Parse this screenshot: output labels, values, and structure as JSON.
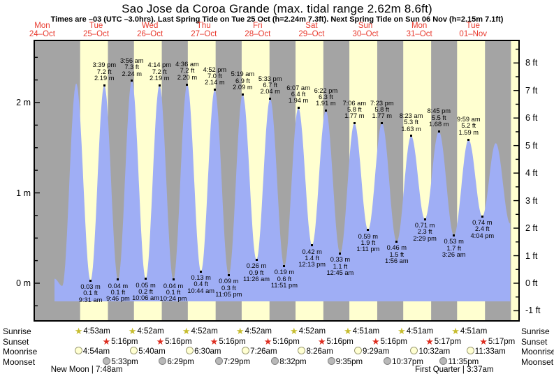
{
  "header": {
    "title": "Sao Jose da Coroa Grande (max. tidal range 2.62m 8.6ft)",
    "subtitle": "Times are –03 (UTC –3.0hrs). Last Spring Tide on Tue 25 Oct (h=2.24m 7.3ft). Next Spring Tide on Sun 06 Nov (h=2.15m 7.1ft)"
  },
  "days": [
    {
      "name": "Mon",
      "date": "24–Oct"
    },
    {
      "name": "Tue",
      "date": "25–Oct"
    },
    {
      "name": "Wed",
      "date": "26–Oct"
    },
    {
      "name": "Thu",
      "date": "27–Oct"
    },
    {
      "name": "Fri",
      "date": "28–Oct"
    },
    {
      "name": "Sat",
      "date": "29–Oct"
    },
    {
      "name": "Sun",
      "date": "30–Oct"
    },
    {
      "name": "Mon",
      "date": "31–Oct"
    },
    {
      "name": "Tue",
      "date": "01–Nov"
    }
  ],
  "chart_data": {
    "type": "area",
    "title": "Sao Jose da Coroa Grande (max. tidal range 2.62m 8.6ft)",
    "ylabel_left_unit": "m",
    "ylabel_right_unit": "ft",
    "left_ticks": [
      "2 m",
      "1 m",
      "0 m"
    ],
    "right_ticks": [
      "8 ft",
      "7 ft",
      "6 ft",
      "5 ft",
      "4 ft",
      "3 ft",
      "2 ft",
      "1 ft",
      "0 ft",
      "-1 ft"
    ],
    "legend": "yellow bands = daylight, gray bands = night, blue area = tide height",
    "tide_events": [
      {
        "d": 0,
        "time_est": "5:28 pm",
        "m_est": 0.05,
        "type": "start",
        "labeled": false
      },
      {
        "d": 0,
        "time_est": "8:55 pm",
        "m_est": -0.03,
        "type": "low",
        "labeled": false
      },
      {
        "d": 1,
        "time_est": "3:09 am",
        "m_est": 2.21,
        "type": "high",
        "labeled": false
      },
      {
        "d": 1,
        "time": "9:31 am",
        "m": "0.03 m",
        "ft": "0.1 ft",
        "type": "low"
      },
      {
        "d": 1,
        "time": "3:39 pm",
        "m": "2.19 m",
        "ft": "7.2 ft",
        "type": "high"
      },
      {
        "d": 1,
        "time": "9:46 pm",
        "m": "0.04 m",
        "ft": "0.1 ft",
        "type": "low"
      },
      {
        "d": 2,
        "time": "3:56 am",
        "m": "2.24 m",
        "ft": "7.3 ft",
        "type": "high"
      },
      {
        "d": 2,
        "time": "10:06 am",
        "m": "0.05 m",
        "ft": "0.2 ft",
        "type": "low"
      },
      {
        "d": 2,
        "time": "4:14 pm",
        "m": "2.19 m",
        "ft": "7.2 ft",
        "type": "high"
      },
      {
        "d": 2,
        "time": "10:24 pm",
        "m": "0.04 m",
        "ft": "0.1 ft",
        "type": "low"
      },
      {
        "d": 3,
        "time": "4:36 am",
        "m": "2.20 m",
        "ft": "7.2 ft",
        "type": "high"
      },
      {
        "d": 3,
        "time": "10:44 am",
        "m": "0.13 m",
        "ft": "0.4 ft",
        "type": "low"
      },
      {
        "d": 3,
        "time": "4:52 pm",
        "m": "2.14 m",
        "ft": "7.0 ft",
        "type": "high"
      },
      {
        "d": 3,
        "time": "11:05 pm",
        "m": "0.09 m",
        "ft": "0.3 ft",
        "type": "low"
      },
      {
        "d": 4,
        "time": "5:19 am",
        "m": "2.09 m",
        "ft": "6.9 ft",
        "type": "high"
      },
      {
        "d": 4,
        "time": "11:26 am",
        "m": "0.26 m",
        "ft": "0.9 ft",
        "type": "low"
      },
      {
        "d": 4,
        "time": "5:33 pm",
        "m": "2.04 m",
        "ft": "6.7 ft",
        "type": "high"
      },
      {
        "d": 4,
        "time": "11:51 pm",
        "m": "0.19 m",
        "ft": "0.6 ft",
        "type": "low"
      },
      {
        "d": 5,
        "time": "6:07 am",
        "m": "1.94 m",
        "ft": "6.4 ft",
        "type": "high"
      },
      {
        "d": 5,
        "time": "12:13 pm",
        "m": "0.42 m",
        "ft": "1.4 ft",
        "type": "low"
      },
      {
        "d": 5,
        "time": "6:22 pm",
        "m": "1.91 m",
        "ft": "6.3 ft",
        "type": "high"
      },
      {
        "d": 6,
        "time": "12:45 am",
        "m": "0.33 m",
        "ft": "1.1 ft",
        "type": "low"
      },
      {
        "d": 6,
        "time": "7:06 am",
        "m": "1.77 m",
        "ft": "5.8 ft",
        "type": "high"
      },
      {
        "d": 6,
        "time": "1:11 pm",
        "m": "0.59 m",
        "ft": "1.9 ft",
        "type": "low"
      },
      {
        "d": 6,
        "time": "7:23 pm",
        "m": "1.77 m",
        "ft": "5.8 ft",
        "type": "high"
      },
      {
        "d": 7,
        "time": "1:56 am",
        "m": "0.46 m",
        "ft": "1.5 ft",
        "type": "low"
      },
      {
        "d": 7,
        "time": "8:23 am",
        "m": "1.63 m",
        "ft": "5.3 ft",
        "type": "high"
      },
      {
        "d": 7,
        "time": "2:29 pm",
        "m": "0.71 m",
        "ft": "2.3 ft",
        "type": "low"
      },
      {
        "d": 7,
        "time": "8:45 pm",
        "m": "1.68 m",
        "ft": "5.5 ft",
        "type": "high"
      },
      {
        "d": 8,
        "time": "3:26 am",
        "m": "0.53 m",
        "ft": "1.7 ft",
        "type": "low"
      },
      {
        "d": 8,
        "time": "9:59 am",
        "m": "1.59 m",
        "ft": "5.2 ft",
        "type": "high"
      },
      {
        "d": 8,
        "time": "4:04 pm",
        "m": "0.74 m",
        "ft": "2.4 ft",
        "type": "low"
      },
      {
        "d": 8,
        "time_est": "10:05 pm",
        "m_est": 1.55,
        "type": "high",
        "labeled": false
      },
      {
        "d": 9,
        "time_est": "4:30 am",
        "m_est": 0.66,
        "type": "end",
        "labeled": false
      }
    ]
  },
  "astro": {
    "rows": [
      {
        "key": "sunrise",
        "label": "Sunrise",
        "icon": "sunrise-star",
        "events": [
          "4:53am",
          "4:52am",
          "4:52am",
          "4:52am",
          "4:52am",
          "4:51am",
          "4:51am",
          "4:51am"
        ]
      },
      {
        "key": "sunset",
        "label": "Sunset",
        "icon": "sunset-star",
        "events": [
          "5:16pm",
          "5:16pm",
          "5:16pm",
          "5:16pm",
          "5:16pm",
          "5:16pm",
          "5:17pm",
          "5:17pm"
        ]
      },
      {
        "key": "moonrise",
        "label": "Moonrise",
        "icon": "moonrise-circle",
        "events": [
          "4:54am",
          "5:40am",
          "6:30am",
          "7:26am",
          "8:26am",
          "9:29am",
          "10:32am",
          "11:33am"
        ]
      },
      {
        "key": "moonset",
        "label": "Moonset",
        "icon": "moonset-circle",
        "events": [
          "5:33pm",
          "6:29pm",
          "7:29pm",
          "8:32pm",
          "9:35pm",
          "10:37pm",
          "11:35pm"
        ]
      }
    ],
    "phases": [
      {
        "name": "New Moon",
        "time": "7:48am",
        "d": 1
      },
      {
        "name": "First Quarter",
        "time": "3:37am",
        "d": 8
      }
    ]
  },
  "colors": {
    "daylight_band": "#ffffd0",
    "night_band": "#a4a4a4",
    "tide_fill": "#9faef5",
    "day_label_red": "#e8392d",
    "sunrise_star": "#c6bc2e",
    "sunset_star": "#dd2d20",
    "moonrise_fill": "#ffffd2",
    "moonset_fill": "#b9b9b9"
  }
}
